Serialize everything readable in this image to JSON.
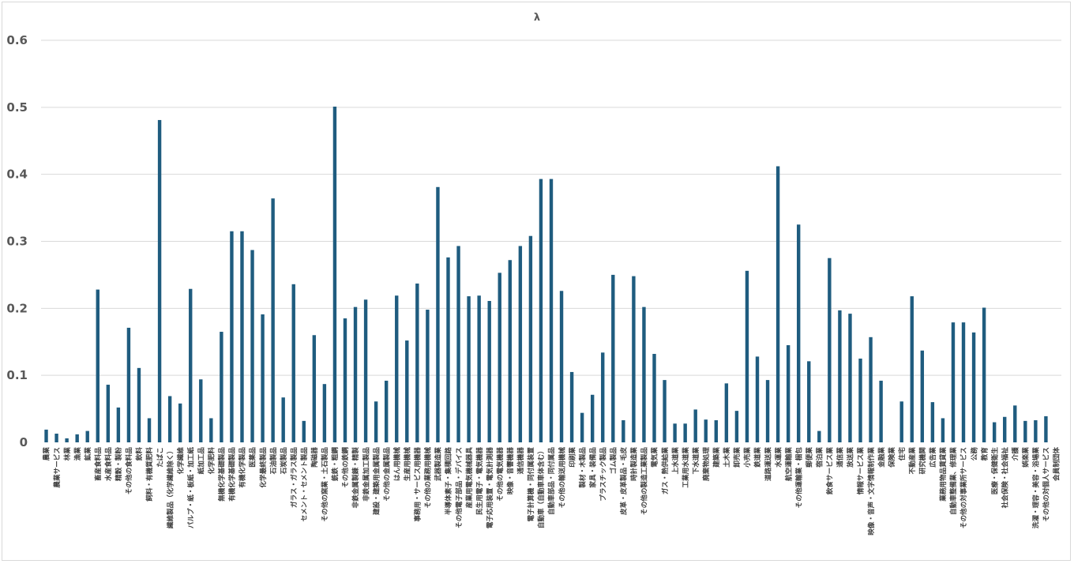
{
  "chart_data": {
    "type": "bar",
    "title": "λ",
    "xlabel": "",
    "ylabel": "",
    "ylim": [
      0,
      0.6
    ],
    "yticks": [
      "0",
      "0.1",
      "0.2",
      "0.3",
      "0.4",
      "0.5",
      "0.6"
    ],
    "grid": true,
    "legend": "none",
    "bar_color": "#1f5c7f",
    "categories": [
      "農業",
      "農業サービス",
      "林業",
      "漁業",
      "鉱業",
      "畜産食料品",
      "水産食料品",
      "精穀・製粉",
      "その他の食料品",
      "飲料",
      "飼料・有機質肥料",
      "たばこ",
      "繊維製品（化学繊維除く）",
      "化学繊維",
      "パルプ・紙・板紙・加工紙",
      "紙加工品",
      "化学肥料",
      "無機化学基礎製品",
      "有機化学基礎製品",
      "有機化学製品",
      "医薬品",
      "化学最終製品",
      "石油製品",
      "石炭製品",
      "ガラス・ガラス製品",
      "セメント・セメント製品",
      "陶磁器",
      "その他の窯業・土石製品",
      "銑鉄・粗鋼",
      "その他の鉄鋼",
      "非鉄金属製錬・精製",
      "非鉄金属加工製品",
      "建設・建築用金属製品",
      "その他の金属製品",
      "はん用機械",
      "生産用機械",
      "事務用・サービス用機器",
      "その他の業務用機械",
      "武器製造業",
      "半導体素子・集積回路",
      "その他電子部品・デバイス",
      "産業用電気機械器具",
      "民生用電子・電気機器",
      "電子応用装置・電気計測器",
      "その他の電気機器",
      "映像・音響機器",
      "通信機器",
      "電子計算機・同付属装置",
      "自動車（自動車車体含む）",
      "自動車部品・同付属品",
      "その他の輸送用機械",
      "印刷業",
      "製材・木製品",
      "家具・装備品",
      "プラスチック製品",
      "ゴム製品",
      "皮革・皮革製品・毛皮",
      "時計製造業",
      "その他の製造工業製品",
      "電気業",
      "ガス・熱供給業",
      "上水道業",
      "工業用水道業",
      "下水道業",
      "廃棄物処理",
      "建築業",
      "土木業",
      "卸売業",
      "小売業",
      "鉄道業",
      "道路運送業",
      "水運業",
      "航空運輸業",
      "その他運輸業・梱包",
      "郵便業",
      "宿泊業",
      "飲食サービス業",
      "通信業",
      "放送業",
      "情報サービス業",
      "映像・音声・文字情報制作業",
      "金融業",
      "保険業",
      "住宅",
      "不動産業",
      "研究機関",
      "広告業",
      "業務用物品賃貸業",
      "自動車整備業、修理業",
      "その他の対事業所サービス",
      "公務",
      "教育",
      "医療・保健衛生",
      "社会保険・社会福祉",
      "介護",
      "娯楽業",
      "洗濯・理容・美容・浴場業",
      "その他の対個人サービス",
      "会員制団体"
    ],
    "values": [
      0.019,
      0.013,
      0.006,
      0.012,
      0.017,
      0.228,
      0.086,
      0.052,
      0.171,
      0.111,
      0.036,
      0.481,
      0.069,
      0.058,
      0.229,
      0.094,
      0.036,
      0.165,
      0.315,
      0.315,
      0.287,
      0.191,
      0.364,
      0.067,
      0.236,
      0.032,
      0.16,
      0.087,
      0.501,
      0.185,
      0.202,
      0.213,
      0.061,
      0.092,
      0.219,
      0.152,
      0.237,
      0.198,
      0.381,
      0.276,
      0.293,
      0.218,
      0.219,
      0.211,
      0.253,
      0.272,
      0.293,
      0.308,
      0.393,
      0.393,
      0.226,
      0.105,
      0.044,
      0.071,
      0.134,
      0.25,
      0.033,
      0.248,
      0.202,
      0.132,
      0.093,
      0.028,
      0.028,
      0.049,
      0.034,
      0.033,
      0.088,
      0.047,
      0.256,
      0.128,
      0.093,
      0.412,
      0.145,
      0.325,
      0.121,
      0.017,
      0.275,
      0.197,
      0.192,
      0.125,
      0.157,
      0.092,
      0.0,
      0.061,
      0.218,
      0.137,
      0.06,
      0.036,
      0.179,
      0.179,
      0.164,
      0.201,
      0.03,
      0.038,
      0.055,
      0.032,
      0.033,
      0.039,
      0.0
    ]
  }
}
